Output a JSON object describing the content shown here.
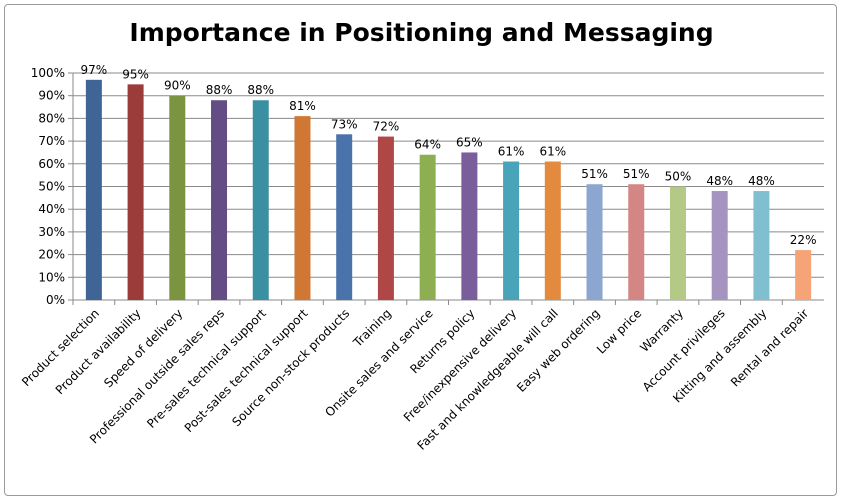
{
  "chart_data": {
    "type": "bar",
    "title": "Importance in Positioning and Messaging",
    "xlabel": "",
    "ylabel": "",
    "ylim": [
      0,
      100
    ],
    "yticks": [
      0,
      10,
      20,
      30,
      40,
      50,
      60,
      70,
      80,
      90,
      100
    ],
    "ytick_suffix": "%",
    "grid": true,
    "legend": "none",
    "categories": [
      "Product selection",
      "Product availability",
      "Speed of delivery",
      "Professional outside sales reps",
      "Pre-sales technical support",
      "Post-sales technical support",
      "Source non-stock products",
      "Training",
      "Onsite sales and service",
      "Returns policy",
      "Free/inexpensive delivery",
      "Fast and knowledgeable will call",
      "Easy web ordering",
      "Low price",
      "Warranty",
      "Account privileges",
      "Kitting and assembly",
      "Rental and repair"
    ],
    "values": [
      97,
      95,
      90,
      88,
      88,
      81,
      73,
      72,
      64,
      65,
      61,
      61,
      51,
      51,
      50,
      48,
      48,
      22
    ],
    "value_labels": [
      "97%",
      "95%",
      "90%",
      "88%",
      "88%",
      "81%",
      "73%",
      "72%",
      "64%",
      "65%",
      "61%",
      "61%",
      "51%",
      "51%",
      "50%",
      "48%",
      "48%",
      "22%"
    ],
    "colors": [
      "#3f6496",
      "#9b3c3a",
      "#7a9440",
      "#644c84",
      "#3b8fa3",
      "#cf7733",
      "#4a73ab",
      "#b04747",
      "#8daf52",
      "#7a5d9b",
      "#4aa4b9",
      "#e38a3f",
      "#8ca6d0",
      "#d48684",
      "#b3c985",
      "#a593c0",
      "#7fbfd0",
      "#f6a477"
    ]
  }
}
